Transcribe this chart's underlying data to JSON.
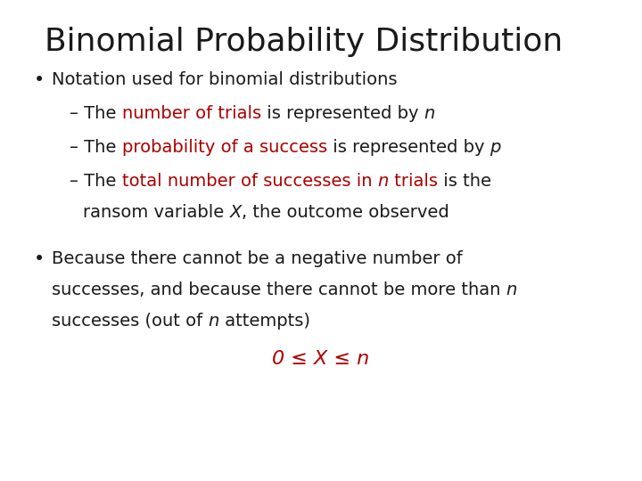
{
  "title": "Binomial Probability Distribution",
  "title_fontsize": 26,
  "background_color": "#ffffff",
  "text_color": "#1a1a1a",
  "red_color": "#aa0000",
  "body_fontsize": 14,
  "font_family": "DejaVu Sans"
}
